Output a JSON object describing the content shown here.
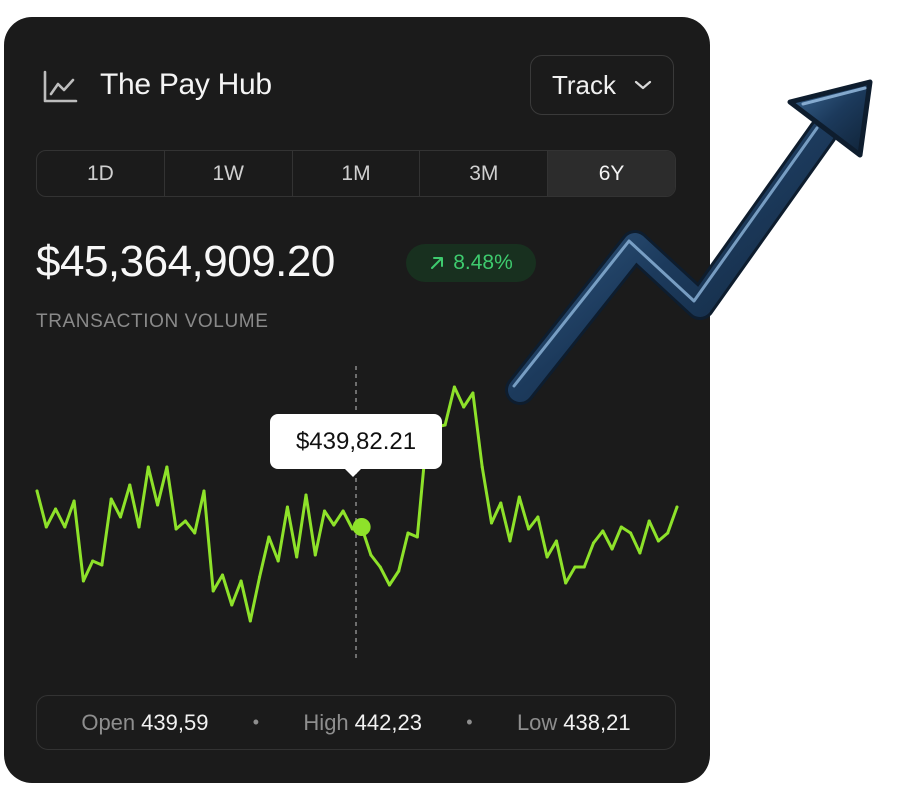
{
  "app": {
    "title": "The Pay Hub",
    "icon": "line-chart-icon"
  },
  "track_button": {
    "label": "Track",
    "icon": "chevron-down-icon"
  },
  "tabs": [
    {
      "label": "1D",
      "active": false
    },
    {
      "label": "1W",
      "active": false
    },
    {
      "label": "1M",
      "active": false
    },
    {
      "label": "3M",
      "active": false
    },
    {
      "label": "6Y",
      "active": true
    }
  ],
  "balance": {
    "amount": "$45,364,909.20",
    "change": "8.48%",
    "change_icon": "arrow-up-right-icon",
    "label": "TRANSACTION VOLUME"
  },
  "tooltip": {
    "value": "$439,82.21"
  },
  "stats": [
    {
      "label": "Open",
      "value": "439,59"
    },
    {
      "label": "High",
      "value": "442,23"
    },
    {
      "label": "Low",
      "value": "438,21"
    }
  ],
  "colors": {
    "line": "#8ee22a",
    "positive": "#3ecb6e",
    "card": "#1b1b1b",
    "arrow": "#1c3a5c"
  },
  "chart_data": {
    "type": "line",
    "title": "",
    "xlabel": "",
    "ylabel": "",
    "highlight_index": 35,
    "values": [
      18,
      0,
      9,
      0,
      13,
      -27,
      -17,
      -19,
      14,
      5,
      21,
      0,
      30,
      11,
      30,
      -1,
      3,
      -3,
      18,
      -32,
      -24,
      -39,
      -27,
      -47,
      -25,
      -5,
      -17,
      10,
      -15,
      16,
      -14,
      8,
      1,
      8,
      -1,
      0,
      -14,
      -20,
      -29,
      -22,
      -3,
      -5,
      45,
      50,
      51,
      70,
      60,
      67,
      30,
      2,
      12,
      -7,
      15,
      -1,
      5,
      -15,
      -7,
      -28,
      -20,
      -20,
      -8,
      -2,
      -11,
      0,
      -3,
      -13,
      3,
      -7,
      -3,
      10
    ]
  }
}
